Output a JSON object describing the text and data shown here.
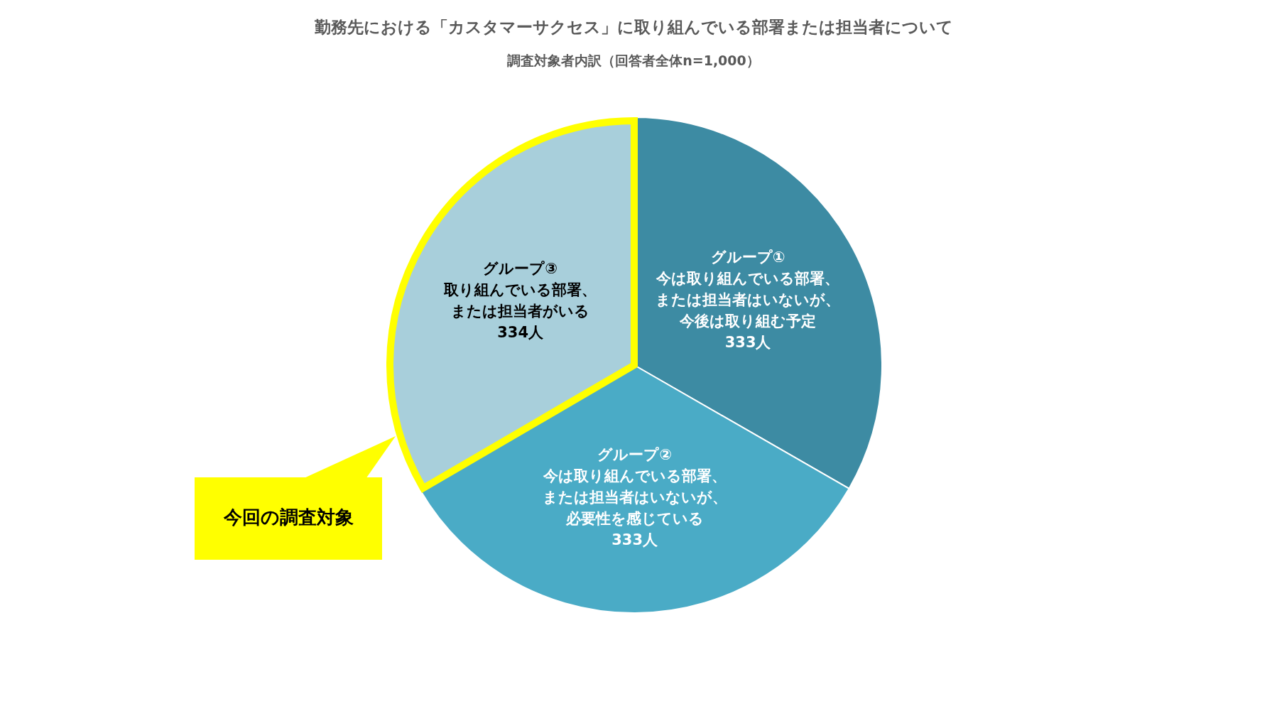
{
  "chart_data": {
    "type": "pie",
    "title": "勤務先における「カスタマーサクセス」に取り組んでいる部署または担当者について",
    "subtitle": "調査対象者内訳（回答者全体n=1,000）",
    "categories": [
      "グループ①",
      "グループ②",
      "グループ③"
    ],
    "values": [
      333,
      333,
      334
    ],
    "colors": [
      "#3d8ba3",
      "#4aabc6",
      "#a8cfdb"
    ],
    "value_labels": [
      "333人",
      "333人",
      "334人"
    ],
    "annotations": [
      {
        "text": "今は取り組んでいる部署、",
        "x": "グループ①"
      },
      {
        "text": "または担当者はいないが、",
        "x": "グループ①"
      },
      {
        "text": "今後は取り組む予定",
        "x": "グループ①"
      },
      {
        "text": "今は取り組んでいる部署、",
        "x": "グループ②"
      },
      {
        "text": "または担当者はいないが、",
        "x": "グループ②"
      },
      {
        "text": "必要性を感じている",
        "x": "グループ②"
      },
      {
        "text": "取り組んでいる部署、",
        "x": "グループ③"
      },
      {
        "text": "または担当者がいる",
        "x": "グループ③"
      },
      "今回の調査対象"
    ]
  }
}
